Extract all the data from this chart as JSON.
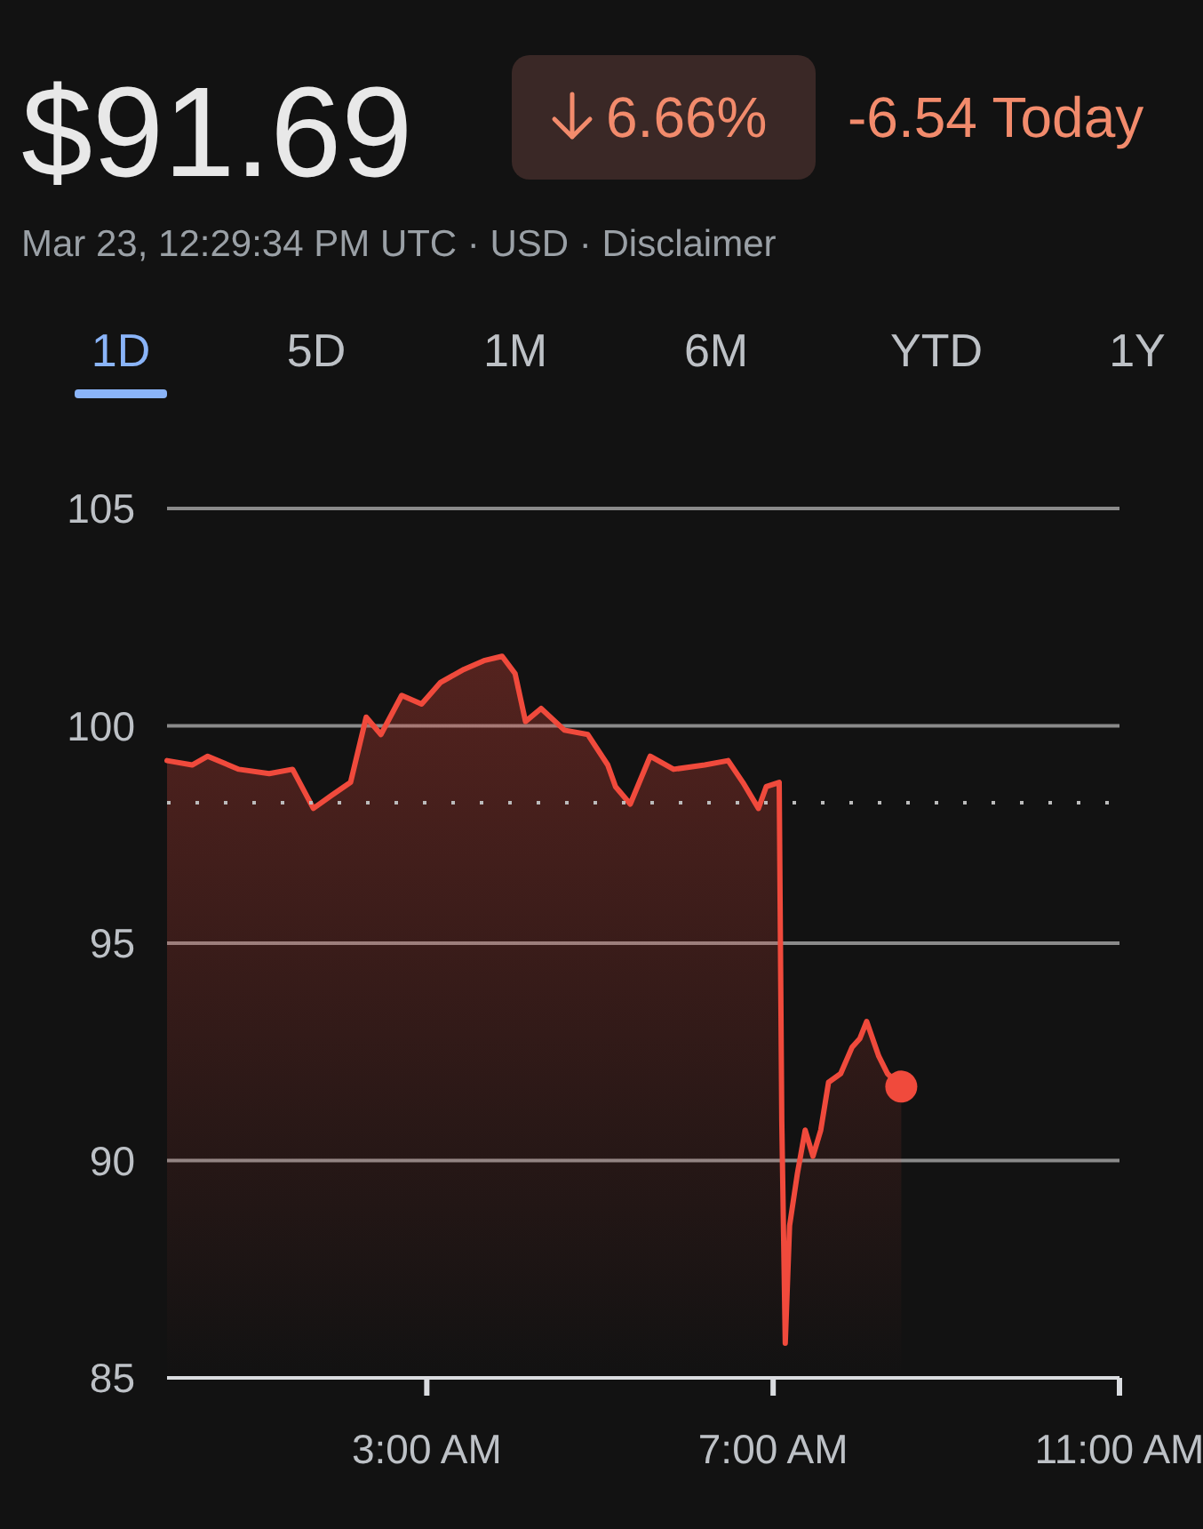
{
  "chart_data": {
    "type": "area",
    "title": "$91.69",
    "subtitle": "Mar 23, 12:29:34 PM UTC · USD · Disclaimer",
    "annotations": [
      "6.66%",
      "-6.54 Today",
      "1D",
      "5D",
      "1M",
      "6M",
      "YTD",
      "1Y"
    ],
    "x": [
      0,
      0.29,
      0.47,
      0.83,
      1.18,
      1.45,
      1.69,
      1.9,
      2.12,
      2.3,
      2.47,
      2.71,
      2.94,
      3.16,
      3.43,
      3.66,
      3.87,
      4.02,
      4.14,
      4.32,
      4.59,
      4.86,
      5.09,
      5.18,
      5.35,
      5.58,
      5.85,
      6.21,
      6.48,
      6.65,
      6.83,
      6.92,
      7.07,
      7.1,
      7.14,
      7.19,
      7.28,
      7.37,
      7.46,
      7.55,
      7.64,
      7.78,
      7.91,
      8.0,
      8.08,
      8.22,
      8.32,
      8.48
    ],
    "series": [
      {
        "color": "#f04a3c",
        "values": [
          99.2,
          99.1,
          99.3,
          99.0,
          98.9,
          99.0,
          98.1,
          98.4,
          98.7,
          100.2,
          99.8,
          100.7,
          100.5,
          101.0,
          101.3,
          101.5,
          101.6,
          101.2,
          100.1,
          100.4,
          99.9,
          99.8,
          99.1,
          98.6,
          98.2,
          99.3,
          99.0,
          99.1,
          99.2,
          98.7,
          98.1,
          98.6,
          98.7,
          90.9,
          85.8,
          88.5,
          89.7,
          90.7,
          90.1,
          90.7,
          91.8,
          92.0,
          92.6,
          92.8,
          93.2,
          92.4,
          92.0,
          91.7
        ]
      }
    ],
    "xlim": [
      0,
      11
    ],
    "xticks": [
      {
        "value": 3,
        "label": "3:00 AM"
      },
      {
        "value": 7,
        "label": "7:00 AM"
      },
      {
        "value": 11,
        "label": "11:00 AM"
      }
    ],
    "ylim": [
      85,
      105
    ],
    "yticks": [
      85,
      90,
      95,
      100,
      105
    ],
    "grid": "y",
    "ref_lines": [
      {
        "axis": "y",
        "value": 98.23,
        "color": "#bbbbbb",
        "line_style": "dotted"
      }
    ]
  }
}
